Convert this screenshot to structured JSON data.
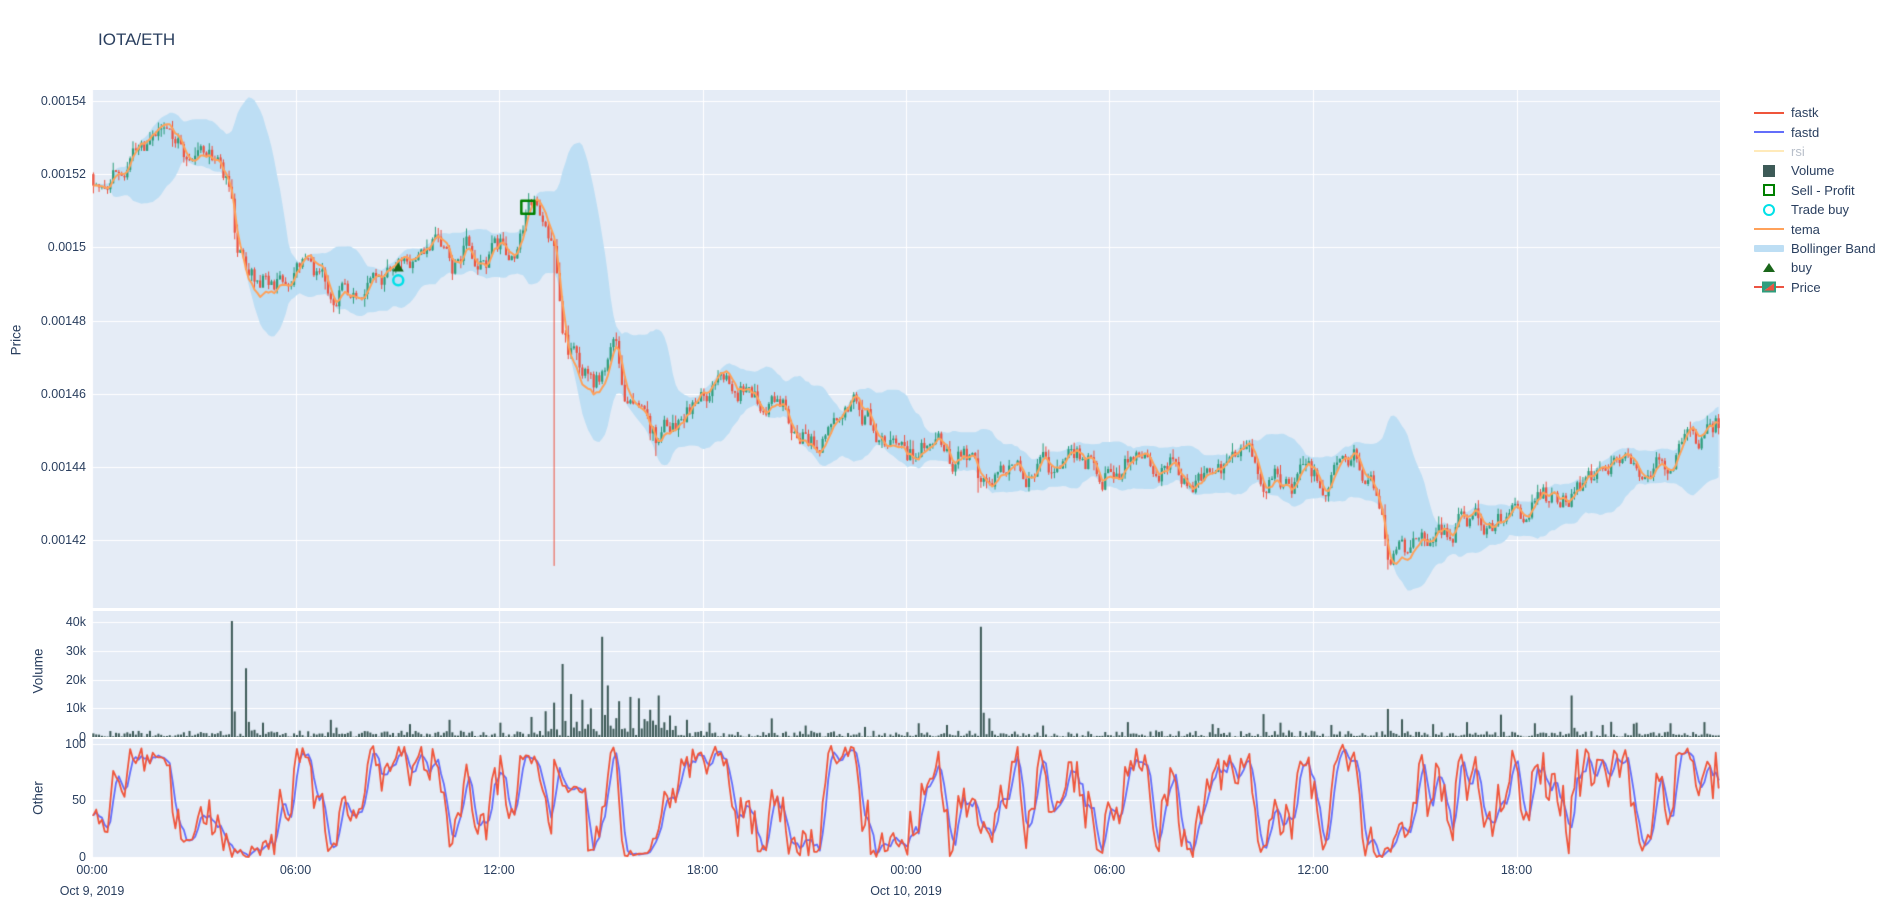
{
  "chart_data": {
    "type": "candlestick",
    "title": "IOTA/ETH",
    "grid": true,
    "legend_position": "right",
    "colors": {
      "plot_bg": "#E5ECF6",
      "grid": "#ffffff",
      "text": "#2a3f5f",
      "muted_text": "#b8bfca",
      "candle_up": "#2E9E7D",
      "candle_down": "#EC5342",
      "tema": "#FFA15A",
      "bollinger": "#BDDEF4",
      "volume_bar": "#3D5A57",
      "fastk": "#EF553B",
      "fastd": "#636EFA",
      "rsi": "#FECB52",
      "buy_marker": "#1A661A",
      "sell_marker": "#008000",
      "trade_buy_marker": "#00E1E8"
    },
    "legend": [
      {
        "label": "fastk",
        "symbol": "line",
        "color": "#EF553B",
        "muted": false
      },
      {
        "label": "fastd",
        "symbol": "line",
        "color": "#636EFA",
        "muted": false
      },
      {
        "label": "rsi",
        "symbol": "line",
        "color": "#FECB52",
        "muted": true
      },
      {
        "label": "Volume",
        "symbol": "square-filled",
        "color": "#3D5A57",
        "muted": false
      },
      {
        "label": "Sell - Profit",
        "symbol": "square-open",
        "color": "#008000",
        "muted": false
      },
      {
        "label": "Trade buy",
        "symbol": "circle-open",
        "color": "#00E1E8",
        "muted": false
      },
      {
        "label": "tema",
        "symbol": "line",
        "color": "#FFA15A",
        "muted": false
      },
      {
        "label": "Bollinger Band",
        "symbol": "band",
        "color": "#BDDEF4",
        "muted": false
      },
      {
        "label": "buy",
        "symbol": "triangle-up",
        "color": "#1A661A",
        "muted": false
      },
      {
        "label": "Price",
        "symbol": "candlestick",
        "color": "#2E9E7D",
        "color2": "#EC5342",
        "muted": false
      }
    ],
    "x_axis": {
      "range_hours": [
        0,
        48
      ],
      "tick_hours": [
        0,
        6,
        12,
        18,
        24,
        30,
        36,
        42
      ],
      "tick_labels": [
        "00:00",
        "06:00",
        "12:00",
        "18:00",
        "00:00",
        "06:00",
        "12:00",
        "18:00"
      ],
      "date_labels": [
        {
          "text": "Oct 9, 2019",
          "hour": 0
        },
        {
          "text": "Oct 10, 2019",
          "hour": 24
        }
      ]
    },
    "panels": {
      "price": {
        "axis_title": "Price",
        "tick_labels": [
          "0.00154",
          "0.00152",
          "0.0015",
          "0.00148",
          "0.00146",
          "0.00144",
          "0.00142"
        ],
        "tick_values": [
          0.00154,
          0.00152,
          0.0015,
          0.00148,
          0.00146,
          0.00144,
          0.00142
        ],
        "range": [
          0.0014015,
          0.001543
        ]
      },
      "volume": {
        "axis_title": "Volume",
        "tick_labels": [
          "40k",
          "30k",
          "20k",
          "10k",
          "0"
        ],
        "tick_values": [
          40000,
          30000,
          20000,
          10000,
          0
        ],
        "range": [
          0,
          44000
        ]
      },
      "other": {
        "axis_title": "Other",
        "tick_labels": [
          "100",
          "50",
          "0"
        ],
        "tick_values": [
          100,
          50,
          0
        ],
        "range": [
          -1,
          104
        ]
      }
    },
    "series": {
      "candle_interval_minutes": 5,
      "close_anchors_hour_price": [
        [
          0,
          0.00152
        ],
        [
          0.8,
          0.001521
        ],
        [
          1.6,
          0.001524
        ],
        [
          2.3,
          0.001531
        ],
        [
          2.8,
          0.001526
        ],
        [
          3.4,
          0.001526
        ],
        [
          3.9,
          0.001519
        ],
        [
          4.2,
          0.0015
        ],
        [
          4.6,
          0.001489
        ],
        [
          5.2,
          0.001492
        ],
        [
          5.8,
          0.00149
        ],
        [
          6.4,
          0.001492
        ],
        [
          7.0,
          0.00149
        ],
        [
          7.6,
          0.001489
        ],
        [
          8.2,
          0.00149
        ],
        [
          9.0,
          0.001491
        ],
        [
          9.6,
          0.001497
        ],
        [
          10.2,
          0.001501
        ],
        [
          10.6,
          0.001495
        ],
        [
          11.0,
          0.0015
        ],
        [
          11.4,
          0.001494
        ],
        [
          11.9,
          0.001498
        ],
        [
          12.4,
          0.001499
        ],
        [
          12.8,
          0.001509
        ],
        [
          13.1,
          0.001513
        ],
        [
          13.4,
          0.001507
        ],
        [
          13.6,
          0.001499
        ],
        [
          13.8,
          0.00148
        ],
        [
          14.0,
          0.001471
        ],
        [
          14.4,
          0.001464
        ],
        [
          14.8,
          0.001461
        ],
        [
          15.1,
          0.001469
        ],
        [
          15.4,
          0.001472
        ],
        [
          15.8,
          0.001458
        ],
        [
          16.2,
          0.001452
        ],
        [
          16.6,
          0.001446
        ],
        [
          17.0,
          0.00145
        ],
        [
          17.4,
          0.001456
        ],
        [
          17.9,
          0.00146
        ],
        [
          18.4,
          0.001462
        ],
        [
          18.9,
          0.001464
        ],
        [
          19.4,
          0.001463
        ],
        [
          19.8,
          0.001459
        ],
        [
          20.2,
          0.001461
        ],
        [
          20.7,
          0.001453
        ],
        [
          21.1,
          0.001449
        ],
        [
          21.6,
          0.001447
        ],
        [
          22.1,
          0.001452
        ],
        [
          22.5,
          0.001455
        ],
        [
          23.0,
          0.001451
        ],
        [
          23.5,
          0.001448
        ],
        [
          24.0,
          0.001444
        ],
        [
          24.6,
          0.001446
        ],
        [
          25.2,
          0.001441
        ],
        [
          25.7,
          0.001444
        ],
        [
          26.1,
          0.001437
        ],
        [
          26.4,
          0.001442
        ],
        [
          27.0,
          0.001444
        ],
        [
          27.6,
          0.00144
        ],
        [
          28.2,
          0.001439
        ],
        [
          28.8,
          0.001441
        ],
        [
          29.4,
          0.001443
        ],
        [
          30.0,
          0.00144
        ],
        [
          30.6,
          0.001442
        ],
        [
          31.2,
          0.001439
        ],
        [
          31.8,
          0.001441
        ],
        [
          32.4,
          0.001437
        ],
        [
          33.0,
          0.001435
        ],
        [
          33.6,
          0.001438
        ],
        [
          34.2,
          0.00144
        ],
        [
          34.8,
          0.001437
        ],
        [
          35.4,
          0.001434
        ],
        [
          36.0,
          0.001437
        ],
        [
          36.6,
          0.001439
        ],
        [
          37.2,
          0.001441
        ],
        [
          37.7,
          0.001438
        ],
        [
          38.0,
          0.001428
        ],
        [
          38.2,
          0.001417
        ],
        [
          38.5,
          0.00142
        ],
        [
          38.9,
          0.001419
        ],
        [
          39.3,
          0.001422
        ],
        [
          39.8,
          0.001424
        ],
        [
          40.3,
          0.001425
        ],
        [
          40.8,
          0.001427
        ],
        [
          41.3,
          0.001426
        ],
        [
          41.8,
          0.001428
        ],
        [
          42.3,
          0.001429
        ],
        [
          42.8,
          0.001431
        ],
        [
          43.3,
          0.00143
        ],
        [
          43.8,
          0.001433
        ],
        [
          44.3,
          0.001434
        ],
        [
          44.8,
          0.001436
        ],
        [
          45.3,
          0.001435
        ],
        [
          45.8,
          0.001438
        ],
        [
          46.3,
          0.00144
        ],
        [
          46.8,
          0.001443
        ],
        [
          47.3,
          0.001446
        ],
        [
          47.7,
          0.00145
        ],
        [
          48,
          0.001452
        ]
      ],
      "low_wick_events_hour_price": [
        [
          13.6,
          0.001413
        ],
        [
          16.6,
          0.001443
        ],
        [
          26.1,
          0.001433
        ],
        [
          38.2,
          0.001412
        ]
      ],
      "volume_spikes_hour_value": [
        [
          4.1,
          40500
        ],
        [
          4.5,
          24000
        ],
        [
          5.0,
          5000
        ],
        [
          7.0,
          6000
        ],
        [
          9.3,
          4500
        ],
        [
          10.5,
          6000
        ],
        [
          12.0,
          5000
        ],
        [
          12.9,
          7000
        ],
        [
          13.3,
          9000
        ],
        [
          13.6,
          12000
        ],
        [
          13.8,
          25500
        ],
        [
          14.1,
          15000
        ],
        [
          14.4,
          13000
        ],
        [
          14.7,
          10000
        ],
        [
          15.0,
          35000
        ],
        [
          15.2,
          18000
        ],
        [
          15.5,
          12500
        ],
        [
          15.8,
          14000
        ],
        [
          16.1,
          13500
        ],
        [
          16.4,
          9500
        ],
        [
          16.7,
          14500
        ],
        [
          17.0,
          7500
        ],
        [
          17.5,
          6000
        ],
        [
          18.2,
          5000
        ],
        [
          20.0,
          6500
        ],
        [
          21.0,
          4000
        ],
        [
          24.3,
          4800
        ],
        [
          25.2,
          4200
        ],
        [
          26.2,
          38500
        ],
        [
          26.4,
          6500
        ],
        [
          28.0,
          4000
        ],
        [
          30.5,
          5200
        ],
        [
          33.0,
          4500
        ],
        [
          34.5,
          8000
        ],
        [
          35.0,
          5000
        ],
        [
          36.5,
          4200
        ],
        [
          38.2,
          9800
        ],
        [
          38.6,
          6200
        ],
        [
          39.5,
          4500
        ],
        [
          40.5,
          5200
        ],
        [
          41.5,
          7800
        ],
        [
          42.5,
          4800
        ],
        [
          43.6,
          14500
        ],
        [
          44.5,
          4200
        ],
        [
          45.5,
          5000
        ],
        [
          46.5,
          4800
        ],
        [
          47.5,
          5200
        ]
      ],
      "markers": {
        "buy": [
          [
            9.03,
            0.0014945
          ]
        ],
        "trade_buy": [
          [
            9.03,
            0.001491
          ]
        ],
        "sell_profit": [
          [
            12.85,
            0.001511
          ]
        ]
      },
      "indicators": {
        "tema_period": 12,
        "bollinger_window": 20,
        "bollinger_k": 2.1,
        "stoch_k_window": 12,
        "stoch_d_smoothing": 3,
        "rsi_visible": false
      }
    }
  }
}
